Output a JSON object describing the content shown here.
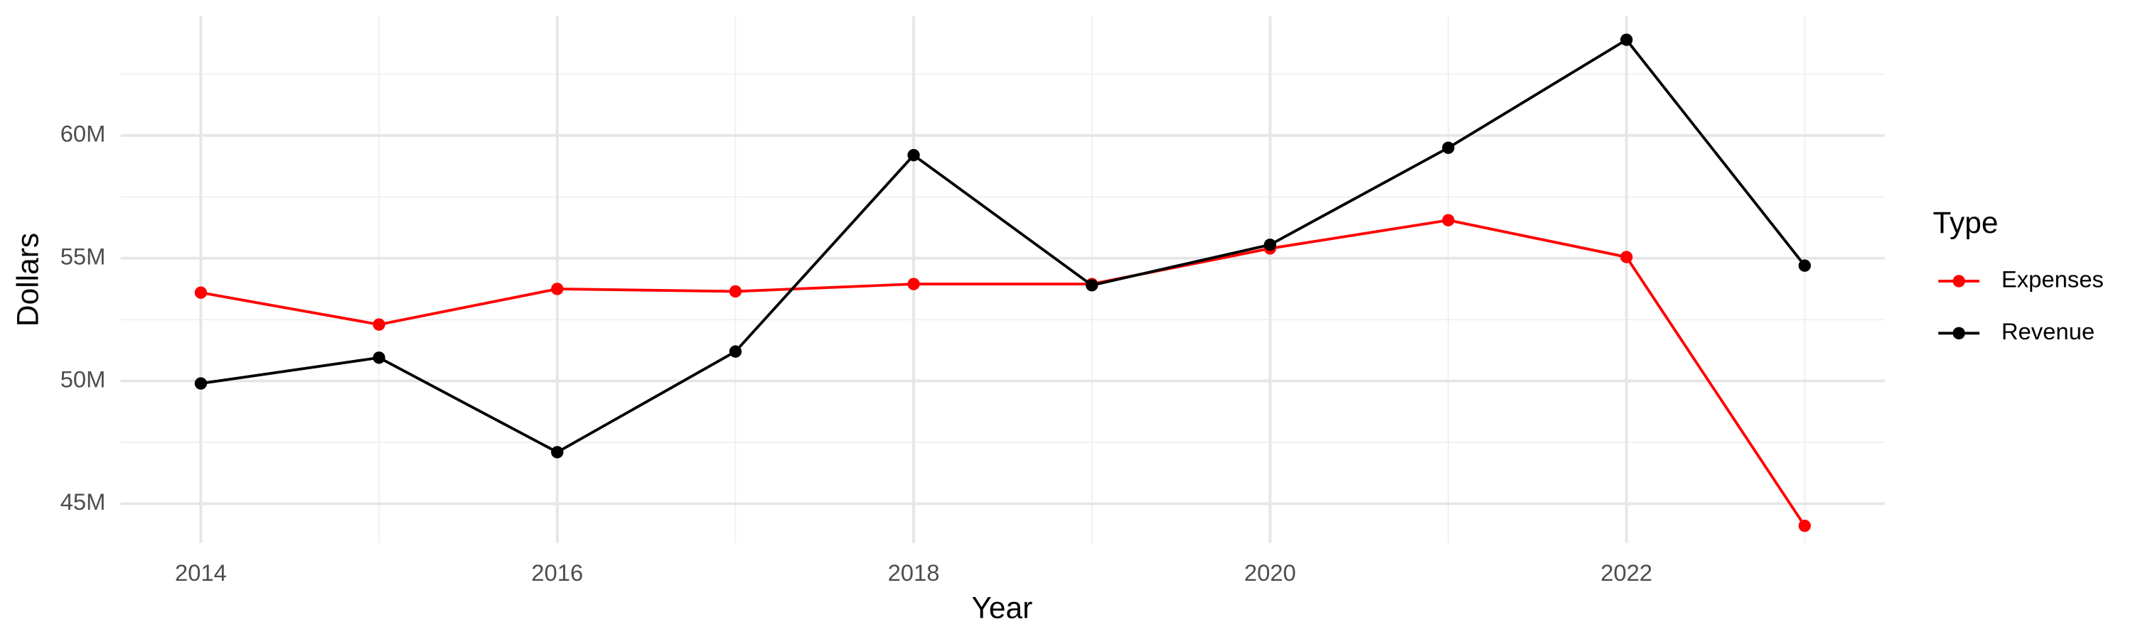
{
  "chart_data": {
    "type": "line",
    "x_label": "Year",
    "y_label": "Dollars",
    "x": [
      2014,
      2015,
      2016,
      2017,
      2018,
      2019,
      2020,
      2021,
      2022,
      2023
    ],
    "series": [
      {
        "name": "Expenses",
        "color": "#ff0000",
        "values": [
          53600000,
          52300000,
          53750000,
          53650000,
          53950000,
          53950000,
          55400000,
          56550000,
          55050000,
          44100000
        ]
      },
      {
        "name": "Revenue",
        "color": "#000000",
        "values": [
          49900000,
          50950000,
          47100000,
          51200000,
          59200000,
          53900000,
          55550000,
          59500000,
          63900000,
          54700000
        ]
      }
    ],
    "xlim": [
      2013.55,
      2023.45
    ],
    "xticks": [
      2014,
      2016,
      2018,
      2020,
      2022
    ],
    "ylim": [
      43400000,
      64850000
    ],
    "yticks": [
      {
        "value": 45000000,
        "label": "45M"
      },
      {
        "value": 50000000,
        "label": "50M"
      },
      {
        "value": 55000000,
        "label": "55M"
      },
      {
        "value": 60000000,
        "label": "60M"
      }
    ],
    "legend_title": "Type",
    "legend_position": "right",
    "grid": true
  }
}
